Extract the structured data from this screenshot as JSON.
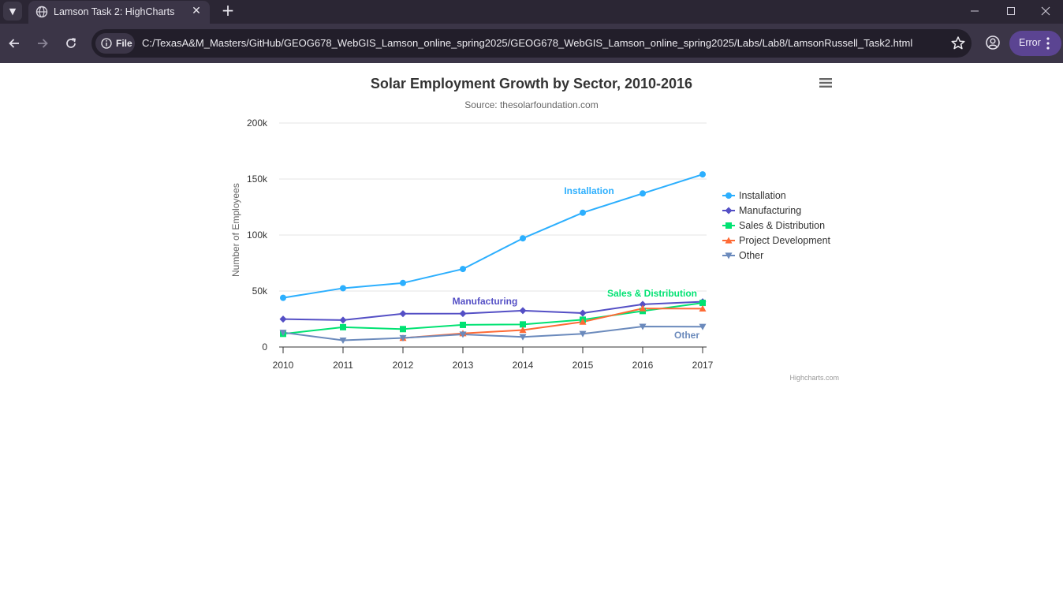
{
  "browser": {
    "tab_title": "Lamson Task 2: HighCharts",
    "site_chip_label": "File",
    "url": "C:/TexasA&M_Masters/GitHub/GEOG678_WebGIS_Lamson_online_spring2025/GEOG678_WebGIS_Lamson_online_spring2025/Labs/Lab8/LamsonRussell_Task2.html",
    "error_label": "Error"
  },
  "chart_data": {
    "type": "line",
    "title": "Solar Employment Growth by Sector, 2010-2016",
    "subtitle": "Source: thesolarfoundation.com",
    "ylabel": "Number of Employees",
    "xlabel": "",
    "x": [
      2010,
      2011,
      2012,
      2013,
      2014,
      2015,
      2016,
      2017
    ],
    "x_tick_labels": [
      "2010",
      "2011",
      "2012",
      "2013",
      "2014",
      "2015",
      "2016",
      "2017"
    ],
    "ylim": [
      0,
      200000
    ],
    "y_tick_labels": [
      "0",
      "50k",
      "100k",
      "150k",
      "200k"
    ],
    "y_ticks": [
      0,
      50000,
      100000,
      150000,
      200000
    ],
    "grid": true,
    "legend_position": "right-middle",
    "series": [
      {
        "name": "Installation",
        "color": "#2caffe",
        "marker": "circle",
        "values": [
          43934,
          52503,
          57177,
          69658,
          97031,
          119931,
          137133,
          154175
        ],
        "label": "Installation"
      },
      {
        "name": "Manufacturing",
        "color": "#544fc5",
        "marker": "diamond",
        "values": [
          24916,
          24064,
          29742,
          29851,
          32490,
          30282,
          38121,
          40434
        ],
        "label": "Manufacturing"
      },
      {
        "name": "Sales & Distribution",
        "color": "#00e272",
        "marker": "square",
        "values": [
          11744,
          17722,
          16005,
          19771,
          20185,
          24377,
          32147,
          39387
        ],
        "label": "Sales & Distribution"
      },
      {
        "name": "Project Development",
        "color": "#fe6a35",
        "marker": "triangle",
        "values": [
          null,
          null,
          7988,
          12169,
          15112,
          22452,
          34400,
          34227
        ],
        "label": ""
      },
      {
        "name": "Other",
        "color": "#6b8abc",
        "marker": "triangle-down",
        "values": [
          12908,
          5948,
          8105,
          11248,
          8989,
          11816,
          18274,
          18111
        ],
        "label": "Other"
      }
    ],
    "credits": "Highcharts.com"
  }
}
